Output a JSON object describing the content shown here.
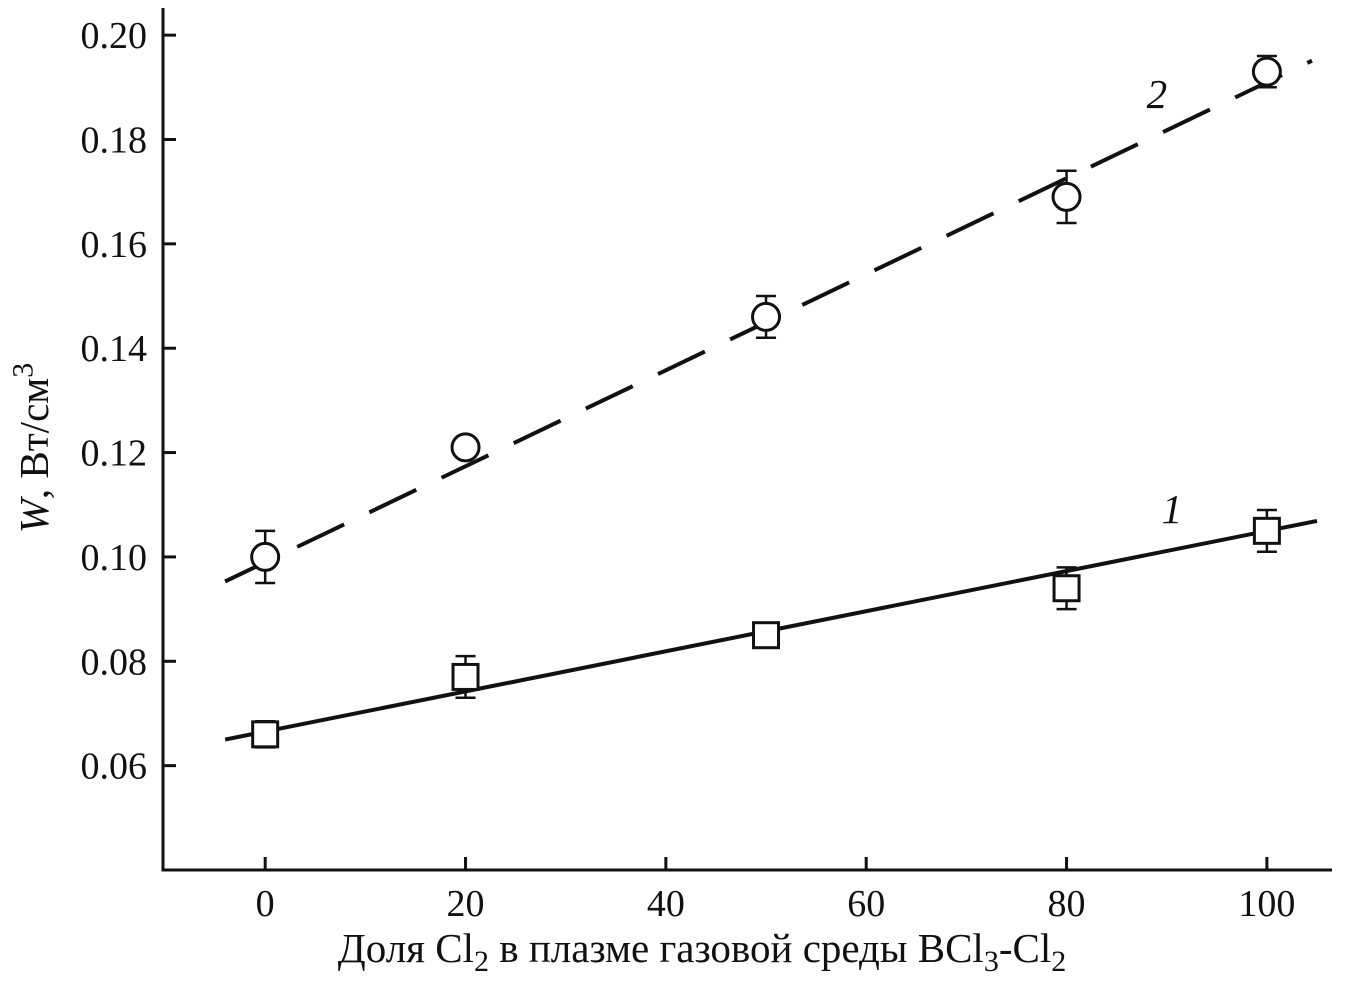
{
  "chart_data": {
    "type": "scatter",
    "title": "",
    "color": "#111111",
    "background": "#ffffff",
    "x_ticks": [
      0,
      20,
      40,
      60,
      80,
      100
    ],
    "y_ticks": [
      0.06,
      0.08,
      0.1,
      0.12,
      0.14,
      0.16,
      0.18,
      0.2
    ],
    "x_range": [
      -10.2,
      106.5
    ],
    "y_range": [
      0.04,
      0.2052
    ],
    "y_tick_decimals": 2,
    "xlabel_segments": [
      {
        "text": "Доля Cl"
      },
      {
        "text": "2",
        "sub": true
      },
      {
        "text": " в плазме газовой среды BCl"
      },
      {
        "text": "3",
        "sub": true
      },
      {
        "text": "-Cl"
      },
      {
        "text": "2",
        "sub": true
      }
    ],
    "ylabel_segments": [
      {
        "text": "W",
        "italic": true
      },
      {
        "text": ", Вт/см"
      },
      {
        "text": "3",
        "sup": true
      }
    ],
    "series": [
      {
        "name": "1",
        "marker": "square",
        "line": "solid",
        "x": [
          0,
          20,
          50,
          80,
          100
        ],
        "y": [
          0.066,
          0.077,
          0.085,
          0.094,
          0.105
        ],
        "yerr": [
          0.0025,
          0.004,
          0.0015,
          0.004,
          0.004
        ],
        "trend": {
          "x": [
            -4,
            105
          ],
          "y": [
            0.065,
            0.1069
          ]
        },
        "label": {
          "text": "1",
          "x": 89.5,
          "y": 0.1065
        }
      },
      {
        "name": "2",
        "marker": "circle",
        "line": "dashed",
        "x": [
          0,
          20,
          50,
          80,
          100
        ],
        "y": [
          0.1,
          0.121,
          0.146,
          0.169,
          0.193
        ],
        "yerr": [
          0.005,
          0.0015,
          0.004,
          0.005,
          0.003
        ],
        "trend": {
          "x": [
            -4,
            104.5
          ],
          "y": [
            0.0953,
            0.1951
          ]
        },
        "label": {
          "text": "2",
          "x": 88,
          "y": 0.186
        }
      }
    ],
    "legend": "none",
    "grid": false
  }
}
